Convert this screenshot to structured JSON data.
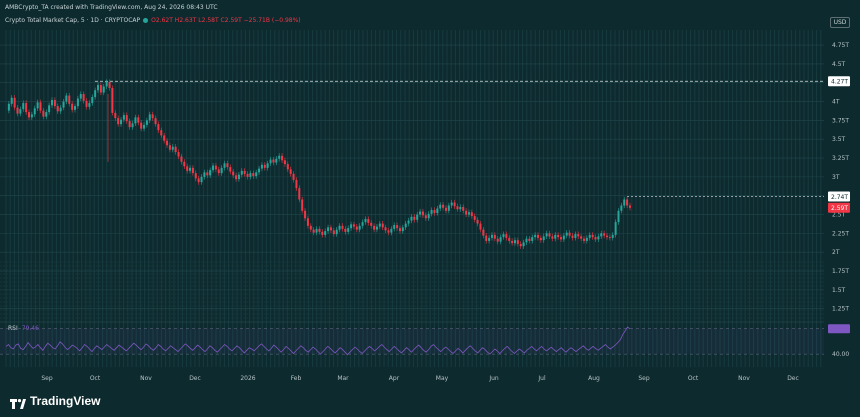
{
  "header": {
    "creator": "AMBCrypto_TA created with TradingView.com, Aug 24, 2026 08:43 UTC",
    "symbol": "Crypto Total Market Cap, 5 · 1D · CRYPTOCAP",
    "ohlc": "O2.62T H2.63T L2.58T C2.59T −25.71B (−0.98%)",
    "change": "−25.71B (−0.98%)",
    "currency": "USD"
  },
  "rsi": {
    "label": "RSI",
    "value": "79.46",
    "ticks": [
      "80.00",
      "40.00"
    ],
    "series": [
      52,
      55,
      50,
      48,
      54,
      56,
      49,
      47,
      52,
      58,
      53,
      49,
      51,
      55,
      50,
      46,
      52,
      57,
      54,
      50,
      48,
      53,
      59,
      56,
      51,
      47,
      50,
      54,
      52,
      49,
      45,
      50,
      55,
      52,
      48,
      44,
      49,
      53,
      50,
      47,
      51,
      55,
      52,
      49,
      46,
      50,
      54,
      51,
      48,
      45,
      49,
      53,
      57,
      54,
      50,
      47,
      51,
      56,
      53,
      49,
      46,
      50,
      55,
      52,
      48,
      45,
      49,
      53,
      50,
      47,
      44,
      48,
      52,
      56,
      53,
      49,
      46,
      50,
      54,
      51,
      47,
      44,
      48,
      53,
      50,
      46,
      43,
      47,
      51,
      55,
      52,
      48,
      45,
      49,
      53,
      50,
      46,
      42,
      46,
      50,
      48,
      45,
      49,
      53,
      56,
      52,
      48,
      45,
      49,
      54,
      51,
      47,
      43,
      47,
      52,
      49,
      45,
      41,
      45,
      49,
      53,
      50,
      46,
      43,
      47,
      51,
      48,
      44,
      40,
      44,
      48,
      52,
      49,
      45,
      42,
      46,
      50,
      47,
      43,
      39,
      43,
      47,
      51,
      48,
      44,
      41,
      45,
      49,
      52,
      49,
      45,
      48,
      52,
      55,
      51,
      47,
      44,
      48,
      52,
      49,
      45,
      42,
      46,
      50,
      47,
      43,
      47,
      51,
      54,
      50,
      46,
      43,
      47,
      52,
      55,
      51,
      47,
      44,
      48,
      51,
      48,
      44,
      41,
      45,
      49,
      46,
      42,
      46,
      50,
      53,
      49,
      45,
      42,
      46,
      50,
      47,
      43,
      40,
      44,
      48,
      45,
      41,
      45,
      49,
      52,
      48,
      44,
      41,
      45,
      48,
      45,
      42,
      46,
      49,
      52,
      48,
      45,
      49,
      52,
      48,
      45,
      48,
      51,
      47,
      44,
      47,
      50,
      46,
      43,
      47,
      50,
      47,
      44,
      47,
      50,
      53,
      49,
      46,
      49,
      52,
      49,
      46,
      49,
      52,
      55,
      51,
      48,
      51,
      54,
      58,
      62,
      70,
      76,
      82,
      79.46
    ]
  },
  "chart_data": {
    "type": "line",
    "title": "Crypto Total Market Cap, 5 · 1D · CRYPTOCAP",
    "xlabel": "",
    "ylabel": "",
    "x_ticks": [
      "Sep",
      "Oct",
      "Nov",
      "Dec",
      "2026",
      "Feb",
      "Mar",
      "Apr",
      "May",
      "Jun",
      "Jul",
      "Aug",
      "Sep",
      "Oct",
      "Nov",
      "Dec"
    ],
    "y_ticks": [
      "4.75T",
      "4.5T",
      "4.25T",
      "4T",
      "3.75T",
      "3.5T",
      "3.25T",
      "3T",
      "2.75T",
      "2.5T",
      "2.25T",
      "2T",
      "1.75T",
      "1.5T",
      "1.25T"
    ],
    "ylim": [
      1.1,
      4.95
    ],
    "price_labels": [
      "4.27T",
      "2.74T",
      "2.59T"
    ],
    "levels": [
      4.27,
      2.74
    ],
    "last_price": 2.59,
    "colors": {
      "up": "#26a69a",
      "down": "#f23645",
      "rsi": "#7e57c2",
      "last": "#f23645"
    },
    "grid": true,
    "legend": "top-left",
    "values": [
      3.88,
      3.97,
      4.05,
      3.92,
      3.84,
      3.9,
      3.98,
      3.86,
      3.79,
      3.83,
      3.91,
      3.99,
      3.88,
      3.8,
      3.86,
      3.95,
      4.02,
      3.94,
      3.87,
      3.92,
      4.0,
      4.08,
      3.97,
      3.89,
      3.94,
      4.04,
      4.1,
      4.01,
      3.93,
      3.98,
      4.06,
      4.15,
      4.22,
      4.12,
      4.2,
      4.26,
      4.18,
      3.85,
      3.78,
      3.7,
      3.76,
      3.82,
      3.74,
      3.66,
      3.71,
      3.79,
      3.72,
      3.64,
      3.69,
      3.75,
      3.83,
      3.78,
      3.7,
      3.62,
      3.55,
      3.48,
      3.42,
      3.36,
      3.4,
      3.33,
      3.27,
      3.2,
      3.14,
      3.08,
      3.12,
      3.05,
      2.98,
      2.93,
      3.0,
      3.06,
      3.02,
      3.09,
      3.15,
      3.1,
      3.05,
      3.12,
      3.18,
      3.13,
      3.07,
      3.02,
      2.97,
      3.03,
      3.08,
      3.04,
      3.0,
      3.05,
      3.01,
      3.06,
      3.11,
      3.16,
      3.12,
      3.18,
      3.23,
      3.19,
      3.24,
      3.28,
      3.22,
      3.17,
      3.1,
      3.04,
      2.96,
      2.85,
      2.7,
      2.55,
      2.45,
      2.35,
      2.3,
      2.26,
      2.31,
      2.27,
      2.23,
      2.28,
      2.33,
      2.29,
      2.24,
      2.3,
      2.35,
      2.31,
      2.27,
      2.32,
      2.37,
      2.34,
      2.3,
      2.35,
      2.4,
      2.44,
      2.39,
      2.35,
      2.3,
      2.34,
      2.38,
      2.33,
      2.29,
      2.26,
      2.31,
      2.36,
      2.32,
      2.28,
      2.33,
      2.38,
      2.42,
      2.47,
      2.43,
      2.5,
      2.54,
      2.49,
      2.45,
      2.51,
      2.56,
      2.52,
      2.58,
      2.63,
      2.59,
      2.55,
      2.62,
      2.66,
      2.61,
      2.57,
      2.6,
      2.55,
      2.5,
      2.53,
      2.48,
      2.43,
      2.38,
      2.3,
      2.22,
      2.15,
      2.19,
      2.23,
      2.18,
      2.14,
      2.2,
      2.24,
      2.19,
      2.15,
      2.12,
      2.16,
      2.11,
      2.08,
      2.13,
      2.18,
      2.15,
      2.2,
      2.23,
      2.19,
      2.16,
      2.21,
      2.25,
      2.21,
      2.18,
      2.23,
      2.2,
      2.17,
      2.22,
      2.26,
      2.22,
      2.19,
      2.24,
      2.21,
      2.18,
      2.15,
      2.19,
      2.23,
      2.2,
      2.17,
      2.21,
      2.25,
      2.22,
      2.2,
      2.19,
      2.23,
      2.4,
      2.55,
      2.62,
      2.7,
      2.62,
      2.59
    ]
  }
}
